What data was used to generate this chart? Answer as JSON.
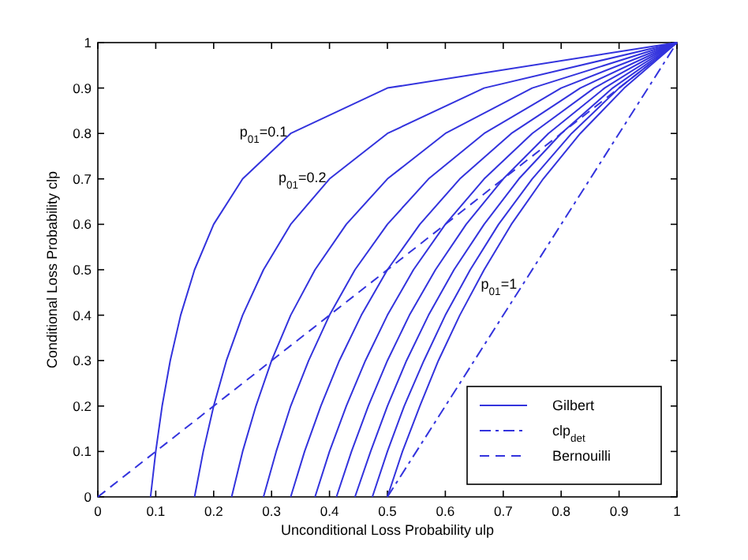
{
  "chart_data": {
    "type": "line",
    "xlabel": "Unconditional Loss Probability ulp",
    "ylabel": "Conditional Loss Probability clp",
    "xlim": [
      0,
      1
    ],
    "ylim": [
      0,
      1
    ],
    "xticks": [
      0,
      0.1,
      0.2,
      0.3,
      0.4,
      0.5,
      0.6,
      0.7,
      0.8,
      0.9,
      1
    ],
    "yticks": [
      0,
      0.1,
      0.2,
      0.3,
      0.4,
      0.5,
      0.6,
      0.7,
      0.8,
      0.9,
      1
    ],
    "grid": false,
    "legend": "bottom right",
    "marker": "none",
    "series": [
      {
        "name": "Gilbert",
        "color": "#3333dd",
        "line_style": "solid",
        "x": [
          0.091,
          0.1,
          0.111,
          0.125,
          0.143,
          0.167,
          0.2,
          0.25,
          0.333,
          0.5,
          1
        ],
        "values": [
          0,
          0.1,
          0.2,
          0.3,
          0.4,
          0.5,
          0.6,
          0.7,
          0.8,
          0.9,
          1
        ]
      },
      {
        "color": "#3333dd",
        "line_style": "solid",
        "x": [
          0.167,
          0.182,
          0.2,
          0.222,
          0.25,
          0.286,
          0.333,
          0.4,
          0.5,
          0.667,
          1
        ],
        "values": [
          0,
          0.1,
          0.2,
          0.3,
          0.4,
          0.5,
          0.6,
          0.7,
          0.8,
          0.9,
          1
        ]
      },
      {
        "color": "#3333dd",
        "line_style": "solid",
        "x": [
          0.231,
          0.25,
          0.273,
          0.3,
          0.333,
          0.375,
          0.429,
          0.5,
          0.6,
          0.75,
          1
        ],
        "values": [
          0,
          0.1,
          0.2,
          0.3,
          0.4,
          0.5,
          0.6,
          0.7,
          0.8,
          0.9,
          1
        ]
      },
      {
        "color": "#3333dd",
        "line_style": "solid",
        "x": [
          0.286,
          0.308,
          0.333,
          0.364,
          0.4,
          0.444,
          0.5,
          0.571,
          0.667,
          0.8,
          1
        ],
        "values": [
          0,
          0.1,
          0.2,
          0.3,
          0.4,
          0.5,
          0.6,
          0.7,
          0.8,
          0.9,
          1
        ]
      },
      {
        "color": "#3333dd",
        "line_style": "solid",
        "x": [
          0.333,
          0.357,
          0.385,
          0.417,
          0.455,
          0.5,
          0.556,
          0.625,
          0.714,
          0.833,
          1
        ],
        "values": [
          0,
          0.1,
          0.2,
          0.3,
          0.4,
          0.5,
          0.6,
          0.7,
          0.8,
          0.9,
          1
        ]
      },
      {
        "color": "#3333dd",
        "line_style": "solid",
        "x": [
          0.375,
          0.4,
          0.429,
          0.462,
          0.5,
          0.545,
          0.6,
          0.667,
          0.75,
          0.857,
          1
        ],
        "values": [
          0,
          0.1,
          0.2,
          0.3,
          0.4,
          0.5,
          0.6,
          0.7,
          0.8,
          0.9,
          1
        ]
      },
      {
        "color": "#3333dd",
        "line_style": "solid",
        "x": [
          0.412,
          0.438,
          0.467,
          0.5,
          0.538,
          0.583,
          0.636,
          0.7,
          0.778,
          0.875,
          1
        ],
        "values": [
          0,
          0.1,
          0.2,
          0.3,
          0.4,
          0.5,
          0.6,
          0.7,
          0.8,
          0.9,
          1
        ]
      },
      {
        "color": "#3333dd",
        "line_style": "solid",
        "x": [
          0.444,
          0.471,
          0.5,
          0.533,
          0.571,
          0.615,
          0.667,
          0.727,
          0.8,
          0.889,
          1
        ],
        "values": [
          0,
          0.1,
          0.2,
          0.3,
          0.4,
          0.5,
          0.6,
          0.7,
          0.8,
          0.9,
          1
        ]
      },
      {
        "color": "#3333dd",
        "line_style": "solid",
        "x": [
          0.474,
          0.5,
          0.529,
          0.563,
          0.6,
          0.643,
          0.692,
          0.75,
          0.818,
          0.9,
          1
        ],
        "values": [
          0,
          0.1,
          0.2,
          0.3,
          0.4,
          0.5,
          0.6,
          0.7,
          0.8,
          0.9,
          1
        ]
      },
      {
        "color": "#3333dd",
        "line_style": "solid",
        "x": [
          0.5,
          0.526,
          0.556,
          0.588,
          0.625,
          0.667,
          0.714,
          0.769,
          0.833,
          0.909,
          1
        ],
        "values": [
          0,
          0.1,
          0.2,
          0.3,
          0.4,
          0.5,
          0.6,
          0.7,
          0.8,
          0.9,
          1
        ]
      },
      {
        "name": "clp$_{det}$",
        "color": "#3333dd",
        "line_style": "dashdot",
        "x": [
          0.5,
          1
        ],
        "values": [
          0,
          1
        ]
      },
      {
        "name": "Bernouilli",
        "color": "#3333dd",
        "line_style": "dashed",
        "x": [
          0,
          1
        ],
        "values": [
          0,
          1
        ]
      }
    ],
    "annotations": [
      {
        "text": "p$_{01}$=0.1",
        "x": 0.333,
        "y": 0.8
      },
      {
        "text": "p$_{01}$=0.2",
        "x": 0.4,
        "y": 0.7
      },
      {
        "text": "p$_{01}$=1",
        "x": 0.667,
        "y": 0.5
      }
    ]
  }
}
